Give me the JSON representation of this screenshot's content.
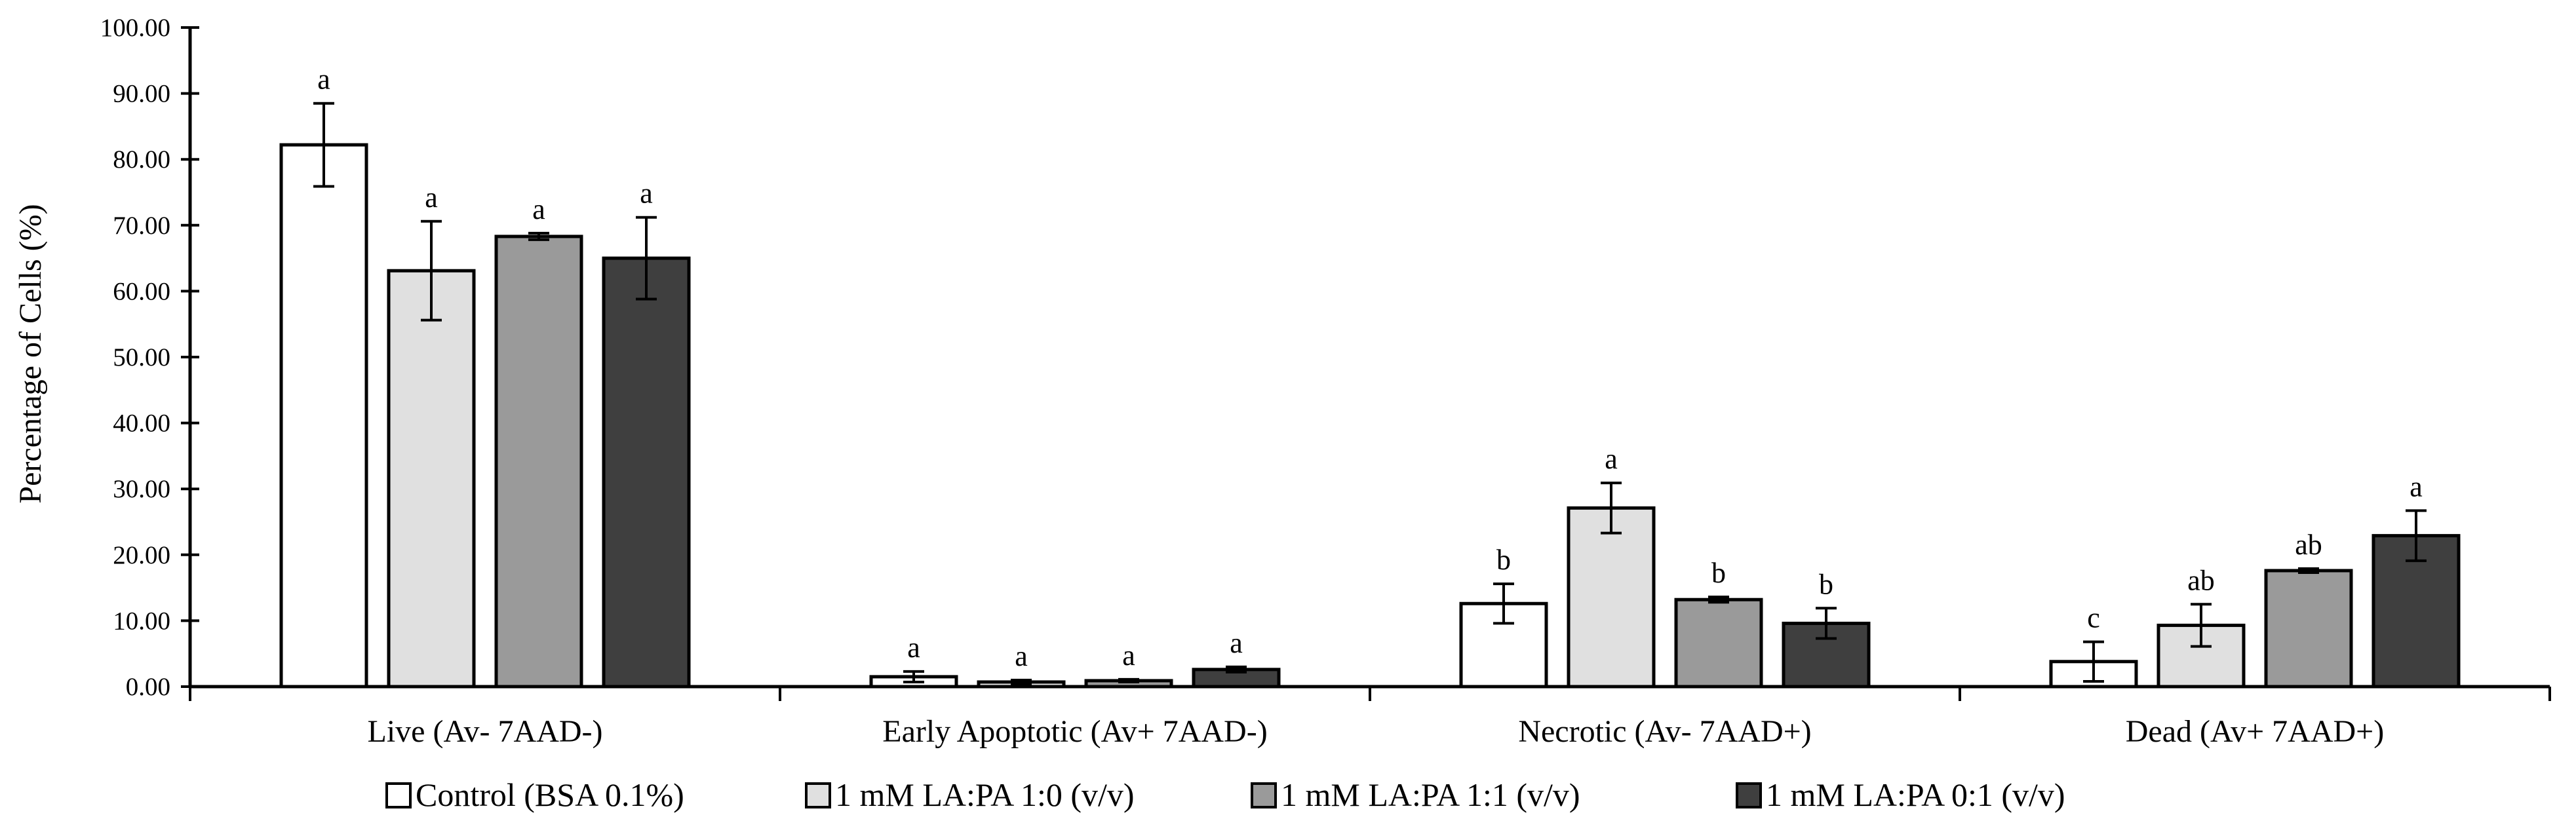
{
  "chart_data": {
    "type": "bar",
    "title": "",
    "xlabel": "",
    "ylabel": "Percentage of Cells (%)",
    "ylim": [
      0,
      100
    ],
    "ytick_step": 10,
    "ytick_labels": [
      "0.00",
      "10.00",
      "20.00",
      "30.00",
      "40.00",
      "50.00",
      "60.00",
      "70.00",
      "80.00",
      "90.00",
      "100.00"
    ],
    "grid": false,
    "legend_position": "bottom",
    "categories": [
      "Live (Av- 7AAD-)",
      "Early Apoptotic (Av+ 7AAD-)",
      "Necrotic (Av- 7AAD+)",
      "Dead (Av+ 7AAD+)"
    ],
    "series": [
      {
        "name": "Control (BSA 0.1%)",
        "color": "#ffffff",
        "values": [
          82.2,
          1.5,
          12.6,
          3.8
        ],
        "errors": [
          6.3,
          0.8,
          3.0,
          3.0
        ],
        "letters": [
          "a",
          "a",
          "b",
          "c"
        ]
      },
      {
        "name": "1 mM LA:PA 1:0 (v/v)",
        "color": "#e0e0e0",
        "values": [
          63.1,
          0.7,
          27.1,
          9.3
        ],
        "errors": [
          7.5,
          0.3,
          3.8,
          3.2
        ],
        "letters": [
          "a",
          "a",
          "a",
          "ab"
        ]
      },
      {
        "name": "1 mM LA:PA 1:1 (v/v)",
        "color": "#9a9a9a",
        "values": [
          68.3,
          0.9,
          13.2,
          17.6
        ],
        "errors": [
          0.5,
          0.2,
          0.4,
          0.3
        ],
        "letters": [
          "a",
          "a",
          "b",
          "ab"
        ]
      },
      {
        "name": "1 mM LA:PA 0:1 (v/v)",
        "color": "#3f3f3f",
        "values": [
          65.0,
          2.6,
          9.6,
          22.9
        ],
        "errors": [
          6.2,
          0.4,
          2.3,
          3.8
        ],
        "letters": [
          "a",
          "a",
          "b",
          "a"
        ]
      }
    ]
  }
}
